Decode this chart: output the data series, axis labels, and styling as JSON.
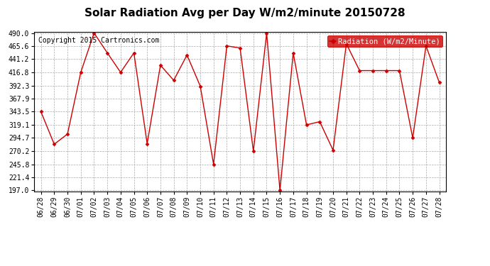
{
  "title": "Solar Radiation Avg per Day W/m2/minute 20150728",
  "copyright": "Copyright 2015 Cartronics.com",
  "legend_label": "Radiation (W/m2/Minute)",
  "dates": [
    "06/28",
    "06/29",
    "06/30",
    "07/01",
    "07/02",
    "07/03",
    "07/04",
    "07/05",
    "07/06",
    "07/07",
    "07/08",
    "07/09",
    "07/10",
    "07/11",
    "07/12",
    "07/13",
    "07/14",
    "07/15",
    "07/16",
    "07/17",
    "07/18",
    "07/19",
    "07/20",
    "07/21",
    "07/22",
    "07/23",
    "07/24",
    "07/25",
    "07/26",
    "07/27",
    "07/28"
  ],
  "values": [
    343.5,
    283.0,
    302.0,
    416.8,
    490.0,
    453.0,
    416.8,
    453.0,
    284.0,
    430.0,
    402.0,
    449.0,
    391.0,
    245.8,
    466.0,
    462.0,
    270.2,
    490.0,
    197.0,
    453.0,
    319.1,
    325.0,
    272.0,
    470.0,
    420.0,
    420.0,
    420.0,
    420.0,
    294.7,
    466.0,
    398.0
  ],
  "line_color": "#cc0000",
  "marker": "D",
  "marker_size": 2.5,
  "bg_color": "#ffffff",
  "plot_bg_color": "#ffffff",
  "grid_color": "#aaaaaa",
  "ylim_min": 197.0,
  "ylim_max": 490.0,
  "yticks": [
    197.0,
    221.4,
    245.8,
    270.2,
    294.7,
    319.1,
    343.5,
    367.9,
    392.3,
    416.8,
    441.2,
    465.6,
    490.0
  ],
  "title_fontsize": 11,
  "tick_fontsize": 7,
  "copyright_fontsize": 7,
  "legend_fontsize": 7.5
}
